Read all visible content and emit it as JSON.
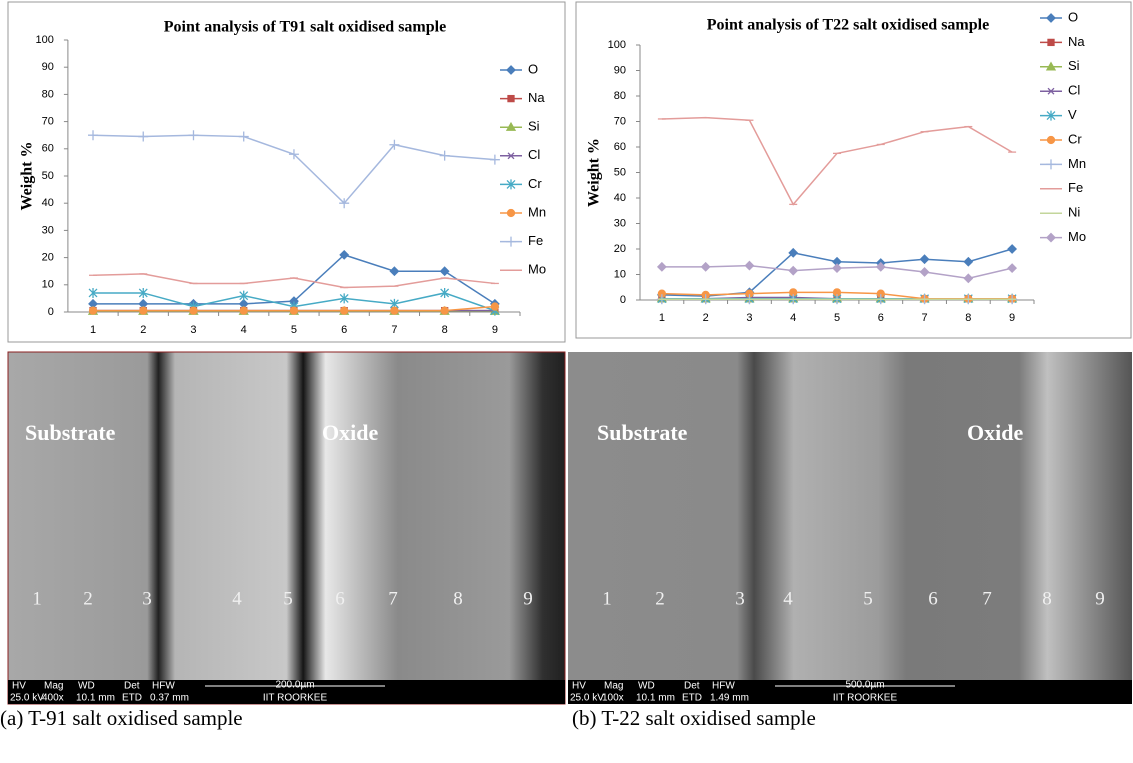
{
  "chart_data": [
    {
      "type": "line",
      "title": "Point analysis of T91 salt oxidised sample",
      "ylabel": "Weight %",
      "categories": [
        "1",
        "2",
        "3",
        "4",
        "5",
        "6",
        "7",
        "8",
        "9"
      ],
      "ylim": [
        0,
        100
      ],
      "yticks": [
        0,
        10,
        20,
        30,
        40,
        50,
        60,
        70,
        80,
        90,
        100
      ],
      "series": [
        {
          "name": "O",
          "color": "#4a7ebb",
          "marker": "diamond",
          "values": [
            3,
            3,
            3,
            3,
            4,
            21,
            15,
            15,
            3
          ]
        },
        {
          "name": "Na",
          "color": "#be4b48",
          "marker": "square",
          "values": [
            0.5,
            0.5,
            0.5,
            0.5,
            0.5,
            0.5,
            0.5,
            0.5,
            0.5
          ]
        },
        {
          "name": "Si",
          "color": "#98b954",
          "marker": "triangle",
          "values": [
            0.3,
            0.3,
            0.3,
            0.3,
            0.3,
            0.3,
            0.3,
            0.3,
            0.3
          ]
        },
        {
          "name": "Cl",
          "color": "#7d60a0",
          "marker": "x",
          "values": [
            0.5,
            0.5,
            0.5,
            0.5,
            0.5,
            0.5,
            0.5,
            0.5,
            0.5
          ]
        },
        {
          "name": "Cr",
          "color": "#46aac5",
          "marker": "star",
          "values": [
            7,
            7,
            2,
            6,
            2,
            5,
            3,
            7,
            0.5
          ]
        },
        {
          "name": "Mn",
          "color": "#f79646",
          "marker": "circle",
          "values": [
            0.5,
            0.5,
            0.5,
            0.5,
            0.5,
            0.5,
            0.5,
            0.5,
            2
          ]
        },
        {
          "name": "Fe",
          "color": "#a5b8de",
          "marker": "plus",
          "values": [
            65,
            64.5,
            65,
            64.5,
            58,
            40,
            61.5,
            57.5,
            56
          ]
        },
        {
          "name": "Mo",
          "color": "#e39c9a",
          "marker": "dash",
          "values": [
            13.5,
            14,
            10.5,
            10.5,
            12.5,
            9,
            9.5,
            12.5,
            10.5
          ]
        }
      ]
    },
    {
      "type": "line",
      "title": "Point analysis of T22 salt oxidised sample",
      "ylabel": "Weight %",
      "categories": [
        "1",
        "2",
        "3",
        "4",
        "5",
        "6",
        "7",
        "8",
        "9"
      ],
      "ylim": [
        0,
        100
      ],
      "yticks": [
        0,
        10,
        20,
        30,
        40,
        50,
        60,
        70,
        80,
        90,
        100
      ],
      "series": [
        {
          "name": "O",
          "color": "#4a7ebb",
          "marker": "diamond",
          "values": [
            2,
            1.5,
            3,
            18.5,
            15,
            14.5,
            16,
            15,
            20
          ]
        },
        {
          "name": "Na",
          "color": "#be4b48",
          "marker": "square",
          "values": [
            0.5,
            0.5,
            0.5,
            0.5,
            0.5,
            0.5,
            0.5,
            0.5,
            0.5
          ]
        },
        {
          "name": "Si",
          "color": "#98b954",
          "marker": "triangle",
          "values": [
            0.5,
            0.5,
            0.5,
            0.5,
            0.5,
            0.5,
            0.5,
            0.5,
            0.5
          ]
        },
        {
          "name": "Cl",
          "color": "#7d60a0",
          "marker": "x",
          "values": [
            0.5,
            0.5,
            1,
            1,
            0.5,
            0.5,
            0.5,
            0.5,
            0.5
          ]
        },
        {
          "name": "V",
          "color": "#46aac5",
          "marker": "star",
          "values": [
            0.5,
            0.5,
            0.5,
            0.5,
            0.5,
            0.5,
            0.5,
            0.5,
            0.5
          ]
        },
        {
          "name": "Cr",
          "color": "#f79646",
          "marker": "circle",
          "values": [
            2.5,
            2,
            2.5,
            3,
            3,
            2.5,
            0.5,
            0.5,
            0.5
          ]
        },
        {
          "name": "Mn",
          "color": "#a5b8de",
          "marker": "plus",
          "values": [
            0.3,
            0.3,
            0.3,
            0.3,
            0.3,
            0.3,
            0.3,
            0.3,
            0.3
          ]
        },
        {
          "name": "Fe",
          "color": "#e39c9a",
          "marker": "dash",
          "values": [
            71,
            71.5,
            70.5,
            37.5,
            57.5,
            61,
            66,
            68,
            58
          ]
        },
        {
          "name": "Ni",
          "color": "#c3d69b",
          "marker": "dash",
          "values": [
            0.3,
            0.3,
            0.3,
            0.3,
            0.3,
            0.3,
            0.3,
            0.3,
            0.3
          ]
        },
        {
          "name": "Mo",
          "color": "#b3a2c7",
          "marker": "diamond",
          "values": [
            13,
            13,
            13.5,
            11.5,
            12.5,
            13,
            11,
            8.5,
            12.5
          ]
        }
      ]
    }
  ],
  "panels": [
    {
      "labels": [
        "Substrate",
        "Oxide"
      ],
      "points": [
        "1",
        "2",
        "3",
        "4",
        "5",
        "6",
        "7",
        "8",
        "9"
      ],
      "info_heads": [
        "HV",
        "Mag",
        "WD",
        "Det",
        "HFW"
      ],
      "info_values": [
        "25.0 kV",
        "400x",
        "10.1 mm",
        "ETD",
        "0.37 mm"
      ],
      "scale": "200.0µm",
      "institute": "IIT ROORKEE",
      "caption": "(a) T-91 salt oxidised sample"
    },
    {
      "labels": [
        "Substrate",
        "Oxide"
      ],
      "points": [
        "1",
        "2",
        "3",
        "4",
        "5",
        "6",
        "7",
        "8",
        "9"
      ],
      "info_heads": [
        "HV",
        "Mag",
        "WD",
        "Det",
        "HFW"
      ],
      "info_values": [
        "25.0 kV",
        "100x",
        "10.1 mm",
        "ETD",
        "1.49 mm"
      ],
      "scale": "500.0µm",
      "institute": "IIT ROORKEE",
      "caption": "(b) T-22 salt oxidised sample"
    }
  ]
}
